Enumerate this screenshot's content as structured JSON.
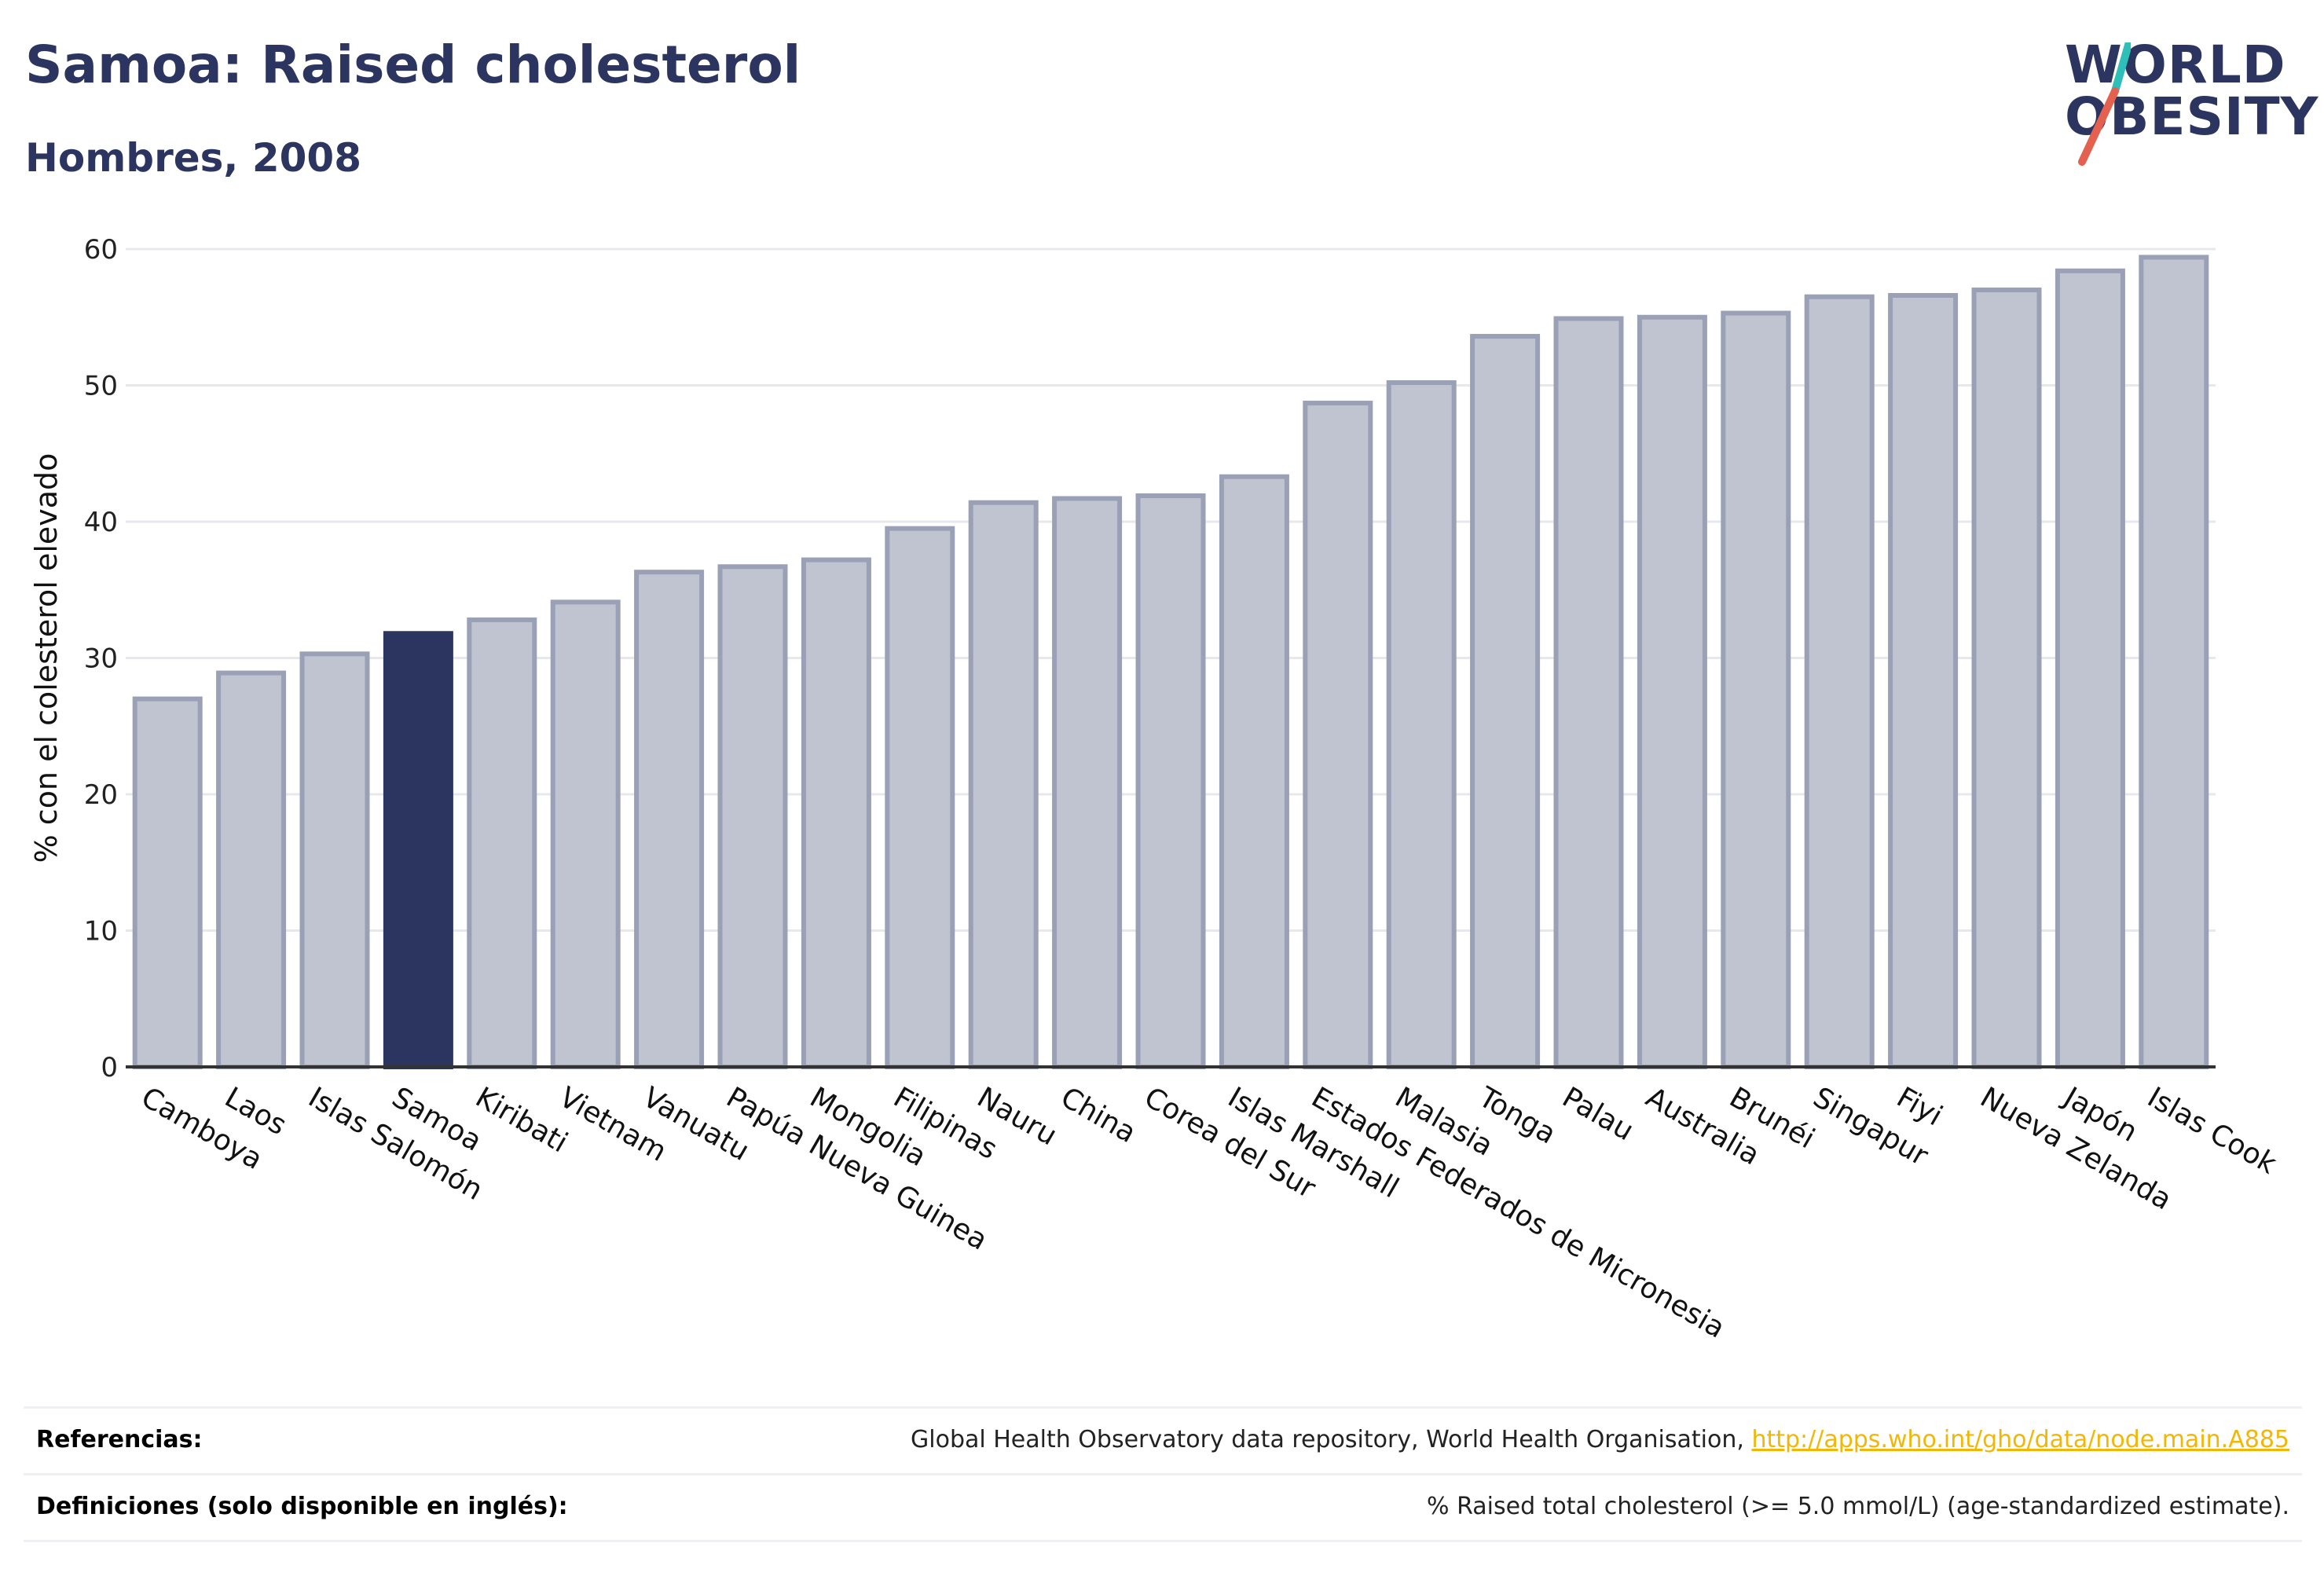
{
  "header": {
    "title": "Samoa: Raised cholesterol",
    "subtitle": "Hombres, 2008"
  },
  "logo": {
    "line1": "WORLD",
    "line2": "OBESITY",
    "slash_colors": [
      "#2fbfb9",
      "#e5614f"
    ]
  },
  "colors": {
    "highlight": "#2b3560",
    "bar_fill": "#c0c4d0",
    "bar_stroke": "#9aa0b5",
    "grid": "#e6e8ee",
    "axis": "#333333"
  },
  "chart_data": {
    "type": "bar",
    "ylabel": "% con el colesterol elevado",
    "ylim": [
      0,
      60
    ],
    "yticks": [
      0,
      10,
      20,
      30,
      40,
      50,
      60
    ],
    "grid": true,
    "highlight_category": "Samoa",
    "categories": [
      "Camboya",
      "Laos",
      "Islas Salomón",
      "Samoa",
      "Kiribati",
      "Vietnam",
      "Vanuatu",
      "Papúa Nueva Guinea",
      "Mongolia",
      "Filipinas",
      "Nauru",
      "China",
      "Corea del Sur",
      "Islas Marshall",
      "Estados Federados de Micronesia",
      "Malasia",
      "Tonga",
      "Palau",
      "Australia",
      "Brunéi",
      "Singapur",
      "Fiyi",
      "Nueva Zelanda",
      "Japón",
      "Islas Cook"
    ],
    "values": [
      27.0,
      28.9,
      30.3,
      31.8,
      32.8,
      34.1,
      36.3,
      36.7,
      37.2,
      39.5,
      41.4,
      41.7,
      41.9,
      43.3,
      48.7,
      50.2,
      53.6,
      54.9,
      55.0,
      55.3,
      56.5,
      56.6,
      57.0,
      58.4,
      59.4
    ]
  },
  "references": {
    "refs_label": "Referencias:",
    "refs_text": "Global Health Observatory data repository, World Health Organisation, ",
    "refs_link": "http://apps.who.int/gho/data/node.main.A885",
    "defs_label": "Definiciones (solo disponible en inglés):",
    "defs_text": "% Raised total cholesterol (>= 5.0 mmol/L) (age-standardized estimate)."
  }
}
